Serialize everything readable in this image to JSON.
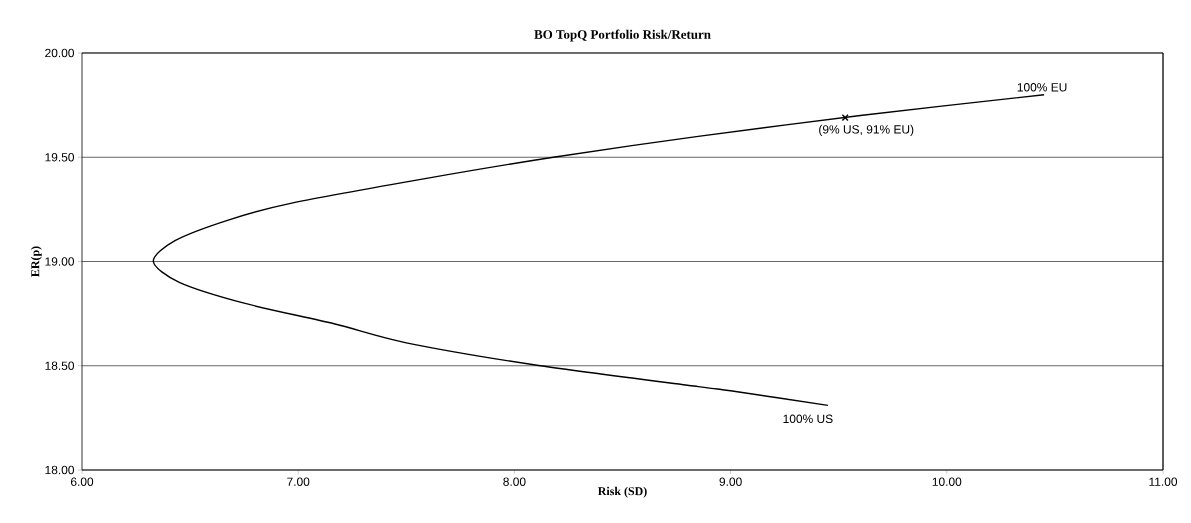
{
  "chart_data": {
    "type": "line",
    "title": "BO TopQ Portfolio Risk/Return",
    "xlabel": "Risk (SD)",
    "ylabel": "ER(p)",
    "series": [
      {
        "color": "#000000",
        "x": [
          9.45,
          9.0,
          8.85,
          8.12,
          7.5,
          7.17,
          6.75,
          6.45,
          6.33,
          6.43,
          6.68,
          6.97,
          7.6,
          8.18,
          8.85,
          9.6,
          10.45
        ],
        "values": [
          18.31,
          18.38,
          18.4,
          18.5,
          18.61,
          18.7,
          18.8,
          18.9,
          19.0,
          19.1,
          19.2,
          19.28,
          19.4,
          19.5,
          19.6,
          19.7,
          19.8
        ]
      },
      {
        "type": "scatter",
        "color": "#000000",
        "marker": "cross",
        "x": [
          9.53
        ],
        "values": [
          19.69
        ]
      }
    ],
    "annotations": [
      {
        "text": "100% EU",
        "x": 10.45,
        "y": 19.8
      },
      {
        "text": "(9% US, 91% EU)",
        "x": 9.53,
        "y": 19.69
      },
      {
        "text": "100% US",
        "x": 9.45,
        "y": 18.31
      }
    ],
    "xlim": [
      6,
      11
    ],
    "ylim": [
      18,
      20
    ],
    "xticks": [
      {
        "value": 6,
        "label": "6.00"
      },
      {
        "value": 7,
        "label": "7.00"
      },
      {
        "value": 8,
        "label": "8.00"
      },
      {
        "value": 9,
        "label": "9.00"
      },
      {
        "value": 10,
        "label": "10.00"
      },
      {
        "value": 11,
        "label": "11.00"
      }
    ],
    "yticks": [
      {
        "value": 18,
        "label": "18.00"
      },
      {
        "value": 18.5,
        "label": "18.50"
      },
      {
        "value": 19,
        "label": "19.00"
      },
      {
        "value": 19.5,
        "label": "19.50"
      },
      {
        "value": 20,
        "label": "20.00"
      }
    ],
    "grid": "y"
  }
}
